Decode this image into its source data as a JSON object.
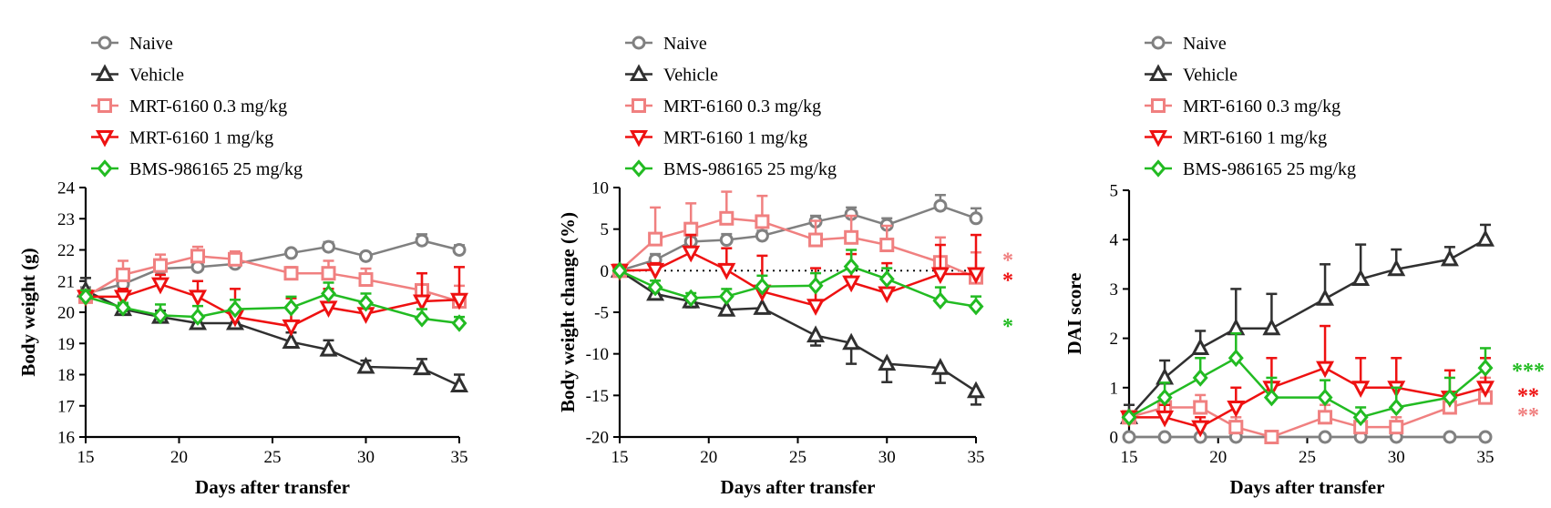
{
  "chart_data": [
    {
      "type": "line",
      "xlabel": "Days after transfer",
      "ylabel": "Body weight (g)",
      "xlim": [
        15,
        35
      ],
      "ylim": [
        16,
        24
      ],
      "xticks": [
        15,
        20,
        25,
        30,
        35
      ],
      "yticks": [
        16,
        17,
        18,
        19,
        20,
        21,
        22,
        23,
        24
      ],
      "zero_line": false,
      "legend_position": "top-left",
      "x": [
        15,
        17,
        19,
        21,
        23,
        26,
        28,
        30,
        33,
        35
      ],
      "series": [
        {
          "name": "Naive",
          "color": "#808080",
          "marker": "circle",
          "values": [
            20.6,
            20.9,
            21.4,
            21.45,
            21.55,
            21.9,
            22.1,
            21.8,
            22.3,
            22.0
          ],
          "errors": [
            0.2,
            0.1,
            0.15,
            0.1,
            0.1,
            0.1,
            0.15,
            0.1,
            0.2,
            0.15
          ]
        },
        {
          "name": "Vehicle",
          "color": "#303030",
          "marker": "triangle-up",
          "values": [
            20.7,
            20.1,
            19.85,
            19.65,
            19.65,
            19.05,
            18.8,
            18.25,
            18.2,
            17.65
          ],
          "errors": [
            0.4,
            0.15,
            0.2,
            0.2,
            0.2,
            0.3,
            0.3,
            0.2,
            0.3,
            0.35
          ]
        },
        {
          "name": "MRT-6160 0.3 mg/kg",
          "color": "#f08080",
          "marker": "square",
          "values": [
            20.5,
            21.2,
            21.5,
            21.8,
            21.7,
            21.25,
            21.25,
            21.05,
            20.7,
            20.35
          ],
          "errors": [
            0.2,
            0.45,
            0.35,
            0.3,
            0.25,
            0.2,
            0.4,
            0.35,
            0.55,
            0.5
          ]
        },
        {
          "name": "MRT-6160 1 mg/kg",
          "color": "#ee1111",
          "marker": "triangle-down",
          "values": [
            20.5,
            20.5,
            20.9,
            20.5,
            19.85,
            19.55,
            20.15,
            19.95,
            20.35,
            20.4
          ],
          "errors": [
            0.2,
            0.25,
            0.3,
            0.5,
            0.9,
            0.9,
            0.6,
            0.4,
            0.9,
            1.05
          ]
        },
        {
          "name": "BMS-986165 25 mg/kg",
          "color": "#22bb22",
          "marker": "diamond",
          "values": [
            20.5,
            20.15,
            19.9,
            19.85,
            20.1,
            20.15,
            20.6,
            20.3,
            19.8,
            19.65
          ],
          "errors": [
            0.2,
            0.15,
            0.35,
            0.35,
            0.3,
            0.35,
            0.35,
            0.3,
            0.3,
            0.2
          ]
        }
      ],
      "annotations": []
    },
    {
      "type": "line",
      "xlabel": "Days after transfer",
      "ylabel": "Body weight change (%)",
      "xlim": [
        15,
        35
      ],
      "ylim": [
        -20,
        10
      ],
      "xticks": [
        15,
        20,
        25,
        30,
        35
      ],
      "yticks": [
        -20,
        -15,
        -10,
        -5,
        0,
        5,
        10
      ],
      "zero_line": true,
      "legend_position": "top-left",
      "x": [
        15,
        17,
        19,
        21,
        23,
        26,
        28,
        30,
        33,
        35
      ],
      "series": [
        {
          "name": "Naive",
          "color": "#808080",
          "marker": "circle",
          "values": [
            0,
            1.3,
            3.5,
            3.7,
            4.2,
            5.9,
            6.8,
            5.5,
            7.8,
            6.3
          ],
          "errors": [
            0,
            0.7,
            0.7,
            0.7,
            0.6,
            0.7,
            0.8,
            0.8,
            1.3,
            1.2
          ]
        },
        {
          "name": "Vehicle",
          "color": "#303030",
          "marker": "triangle-up",
          "values": [
            0,
            -2.8,
            -3.7,
            -4.7,
            -4.5,
            -7.8,
            -8.7,
            -11.2,
            -11.7,
            -14.5
          ],
          "errors": [
            0,
            0.5,
            0.7,
            0.6,
            0.6,
            1.2,
            2.5,
            2.2,
            1.8,
            1.6
          ]
        },
        {
          "name": "MRT-6160 0.3 mg/kg",
          "color": "#f08080",
          "marker": "square",
          "values": [
            0,
            3.8,
            5.0,
            6.3,
            5.9,
            3.7,
            4.0,
            3.1,
            1.0,
            -0.8
          ],
          "errors": [
            0,
            3.8,
            3.1,
            3.2,
            3.1,
            2.3,
            2.6,
            2.3,
            3.0,
            3.0
          ]
        },
        {
          "name": "MRT-6160 1 mg/kg",
          "color": "#ee1111",
          "marker": "triangle-down",
          "values": [
            0,
            0.1,
            2.2,
            0.1,
            -2.5,
            -4.2,
            -1.4,
            -2.7,
            -0.4,
            -0.4
          ],
          "errors": [
            0,
            0.8,
            2.1,
            2.6,
            4.3,
            4.5,
            3.4,
            3.6,
            3.5,
            4.7
          ]
        },
        {
          "name": "BMS-986165 25 mg/kg",
          "color": "#22bb22",
          "marker": "diamond",
          "values": [
            0,
            -2.0,
            -3.3,
            -3.1,
            -1.9,
            -1.8,
            0.5,
            -1.0,
            -3.6,
            -4.3
          ],
          "errors": [
            0,
            0.8,
            0.6,
            0.9,
            1.3,
            1.5,
            2.0,
            1.3,
            1.6,
            1.2
          ]
        }
      ],
      "annotations": [
        {
          "text": "*",
          "color": "#f08080",
          "y": 1.5
        },
        {
          "text": "*",
          "color": "#ee1111",
          "y": -0.9
        },
        {
          "text": "*",
          "color": "#22bb22",
          "y": -6.4
        }
      ]
    },
    {
      "type": "line",
      "xlabel": "Days after transfer",
      "ylabel": "DAI score",
      "xlim": [
        15,
        35
      ],
      "ylim": [
        0,
        5
      ],
      "xticks": [
        15,
        20,
        25,
        30,
        35
      ],
      "yticks": [
        0,
        1,
        2,
        3,
        4,
        5
      ],
      "zero_line": false,
      "legend_position": "top-left",
      "x": [
        15,
        17,
        19,
        21,
        23,
        26,
        28,
        30,
        33,
        35
      ],
      "series": [
        {
          "name": "Naive",
          "color": "#808080",
          "marker": "circle",
          "values": [
            0,
            0,
            0,
            0,
            0,
            0,
            0,
            0,
            0,
            0
          ],
          "errors": [
            0,
            0,
            0,
            0,
            0,
            0,
            0,
            0,
            0,
            0
          ]
        },
        {
          "name": "Vehicle",
          "color": "#303030",
          "marker": "triangle-up",
          "values": [
            0.4,
            1.2,
            1.8,
            2.2,
            2.2,
            2.8,
            3.2,
            3.4,
            3.6,
            4.0
          ],
          "errors": [
            0.25,
            0.35,
            0.35,
            0.8,
            0.7,
            0.7,
            0.7,
            0.4,
            0.25,
            0.3
          ]
        },
        {
          "name": "MRT-6160 0.3 mg/kg",
          "color": "#f08080",
          "marker": "square",
          "values": [
            0.4,
            0.6,
            0.6,
            0.2,
            0,
            0.4,
            0.2,
            0.2,
            0.6,
            0.8
          ],
          "errors": [
            0,
            0.25,
            0.25,
            0.2,
            0,
            0.25,
            0.2,
            0.2,
            0.25,
            0.4
          ]
        },
        {
          "name": "MRT-6160 1 mg/kg",
          "color": "#ee1111",
          "marker": "triangle-down",
          "values": [
            0.4,
            0.4,
            0.2,
            0.6,
            1.0,
            1.4,
            1.0,
            1.0,
            0.8,
            1.0
          ],
          "errors": [
            0,
            0.25,
            0.2,
            0.4,
            0.6,
            0.85,
            0.6,
            0.6,
            0.55,
            0.6
          ]
        },
        {
          "name": "BMS-986165 25 mg/kg",
          "color": "#22bb22",
          "marker": "diamond",
          "values": [
            0.4,
            0.8,
            1.2,
            1.6,
            0.8,
            0.8,
            0.4,
            0.6,
            0.8,
            1.4
          ],
          "errors": [
            0,
            0.3,
            0.4,
            0.5,
            0.4,
            0.35,
            0.2,
            0.4,
            0.4,
            0.4
          ]
        }
      ],
      "annotations": [
        {
          "text": "***",
          "color": "#22bb22",
          "y": 1.38
        },
        {
          "text": "**",
          "color": "#ee1111",
          "y": 0.88
        },
        {
          "text": "**",
          "color": "#f08080",
          "y": 0.48
        }
      ]
    }
  ]
}
